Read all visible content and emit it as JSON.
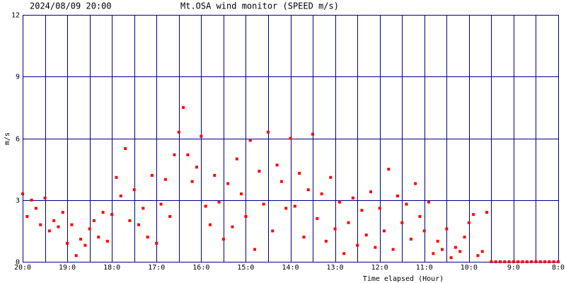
{
  "chart_data": {
    "type": "scatter",
    "timestamp": "2024/08/09 20:00",
    "title": "Mt.OSA wind monitor (SPEED m/s)",
    "y_label": "m/s",
    "x_label": "Time elapsed (Hour)",
    "xlim": [
      0,
      12
    ],
    "ylim": [
      0,
      12
    ],
    "yticks": [
      0,
      3,
      6,
      9,
      12
    ],
    "xticks": [
      {
        "value": 0,
        "label": "20:0"
      },
      {
        "value": 1,
        "label": "19:0"
      },
      {
        "value": 2,
        "label": "18:0"
      },
      {
        "value": 3,
        "label": "17:0"
      },
      {
        "value": 4,
        "label": "16:0"
      },
      {
        "value": 5,
        "label": "15:0"
      },
      {
        "value": 6,
        "label": "14:0"
      },
      {
        "value": 7,
        "label": "13:0"
      },
      {
        "value": 8,
        "label": "12:0"
      },
      {
        "value": 9,
        "label": "11:0"
      },
      {
        "value": 10,
        "label": "10:0"
      },
      {
        "value": 11,
        "label": "9:0"
      },
      {
        "value": 12,
        "label": "8:0"
      }
    ],
    "x_minor_ticks": [
      0.5,
      1.5,
      2.5,
      3.5,
      4.5,
      5.5,
      6.5,
      7.5,
      8.5,
      9.5,
      10.5,
      11.5
    ],
    "grid": true,
    "grid_color": "#000080",
    "color": "#ff0000",
    "x": [
      0,
      0.1,
      0.2,
      0.3,
      0.4,
      0.5,
      0.6,
      0.7,
      0.8,
      0.9,
      1,
      1.1,
      1.2,
      1.3,
      1.4,
      1.5,
      1.6,
      1.7,
      1.8,
      1.9,
      2,
      2.1,
      2.2,
      2.3,
      2.4,
      2.5,
      2.6,
      2.7,
      2.8,
      2.9,
      3,
      3.1,
      3.2,
      3.3,
      3.4,
      3.5,
      3.6,
      3.7,
      3.8,
      3.9,
      4,
      4.1,
      4.2,
      4.3,
      4.4,
      4.5,
      4.6,
      4.7,
      4.8,
      4.9,
      5,
      5.1,
      5.2,
      5.3,
      5.4,
      5.5,
      5.6,
      5.7,
      5.8,
      5.9,
      6,
      6.1,
      6.2,
      6.3,
      6.4,
      6.5,
      6.6,
      6.7,
      6.8,
      6.9,
      7,
      7.1,
      7.2,
      7.3,
      7.4,
      7.5,
      7.6,
      7.7,
      7.8,
      7.9,
      8,
      8.1,
      8.2,
      8.3,
      8.4,
      8.5,
      8.6,
      8.7,
      8.8,
      8.9,
      9,
      9.1,
      9.2,
      9.3,
      9.4,
      9.5,
      9.6,
      9.7,
      9.8,
      9.9,
      10,
      10.1,
      10.2,
      10.3,
      10.4,
      10.5,
      10.6,
      10.7,
      10.8,
      10.9,
      11,
      11.1,
      11.2,
      11.3,
      11.4,
      11.5,
      11.6,
      11.7,
      11.8,
      11.9,
      12
    ],
    "values": [
      3.3,
      2.2,
      3.0,
      2.6,
      1.8,
      3.1,
      1.5,
      2.0,
      1.7,
      2.4,
      0.9,
      1.8,
      0.3,
      1.1,
      0.8,
      1.6,
      2.0,
      1.2,
      2.4,
      1.0,
      2.3,
      4.1,
      3.2,
      5.5,
      2.0,
      3.5,
      1.8,
      2.6,
      1.2,
      4.2,
      0.9,
      2.8,
      4.0,
      2.2,
      5.2,
      6.3,
      7.5,
      5.2,
      3.9,
      4.6,
      6.1,
      2.7,
      1.8,
      4.2,
      2.9,
      1.1,
      3.8,
      1.7,
      5.0,
      3.3,
      2.2,
      5.9,
      0.6,
      4.4,
      2.8,
      6.3,
      1.5,
      4.7,
      3.9,
      2.6,
      6.0,
      2.7,
      4.3,
      1.2,
      3.5,
      6.2,
      2.1,
      3.3,
      1.0,
      4.1,
      1.6,
      2.9,
      0.4,
      1.9,
      3.1,
      0.8,
      2.5,
      1.3,
      3.4,
      0.7,
      2.6,
      1.5,
      4.5,
      0.6,
      3.2,
      1.9,
      2.8,
      1.1,
      3.8,
      2.2,
      1.5,
      2.9,
      0.4,
      1.0,
      0.6,
      1.6,
      0.2,
      0.7,
      0.5,
      1.2,
      1.9,
      2.3,
      0.3,
      0.5,
      2.4,
      0,
      0,
      0,
      0,
      0,
      0,
      0,
      0,
      0,
      0,
      0,
      0,
      0,
      0,
      0,
      0
    ]
  }
}
